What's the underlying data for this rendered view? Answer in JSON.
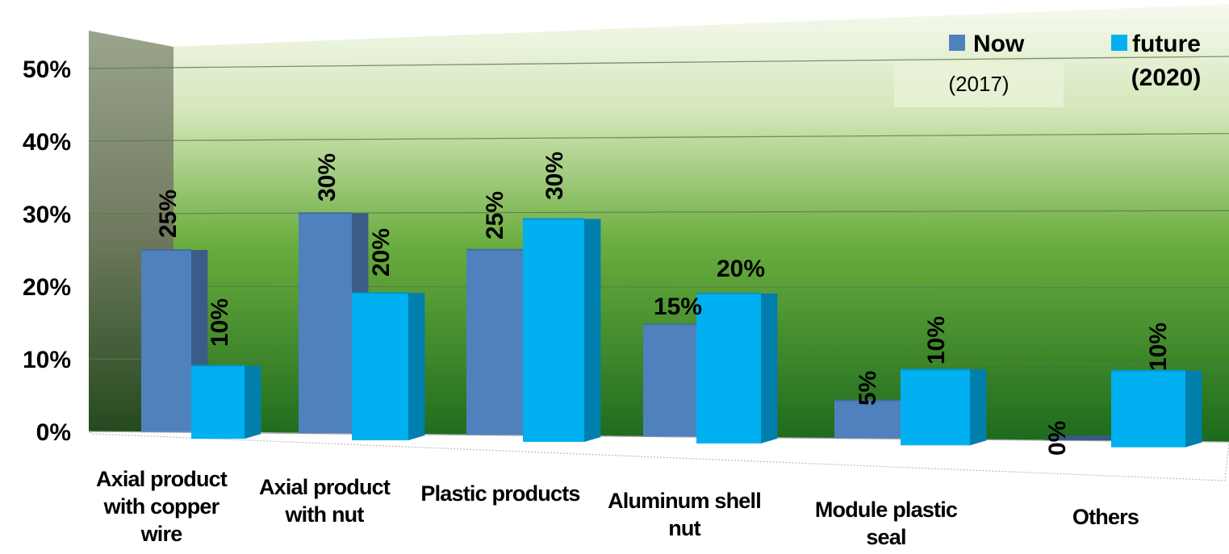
{
  "chart_data": {
    "type": "bar",
    "categories": [
      [
        "Axial product",
        "with copper",
        "wire"
      ],
      [
        "Axial product",
        "with nut"
      ],
      [
        "Plastic products"
      ],
      [
        "Aluminum shell",
        "nut"
      ],
      [
        "Module plastic",
        "seal"
      ],
      [
        "Others"
      ]
    ],
    "series": [
      {
        "name": "Now",
        "name_sub": "(2017)",
        "values": [
          25,
          30,
          25,
          15,
          5,
          0
        ],
        "labels": [
          "25%",
          "30%",
          "25%",
          "15%",
          "5%",
          "0%"
        ],
        "color": "#4f81bd"
      },
      {
        "name": "future",
        "name_sub": "(2020)",
        "values": [
          10,
          20,
          30,
          20,
          10,
          10
        ],
        "labels": [
          "10%",
          "20%",
          "30%",
          "20%",
          "10%",
          "10%"
        ],
        "color": "#00b0f0"
      }
    ],
    "y_ticks": [
      "0%",
      "10%",
      "20%",
      "30%",
      "40%",
      "50%"
    ],
    "ylim": [
      0,
      50
    ],
    "grid": true,
    "legend": "top-right",
    "style": "3d-perspective",
    "background": "green-gradient"
  }
}
